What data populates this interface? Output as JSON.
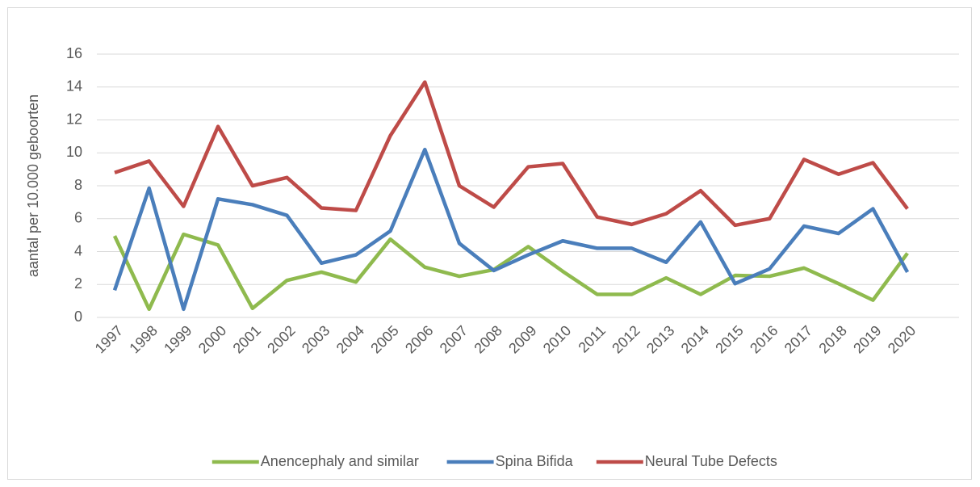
{
  "chart_data": {
    "type": "line",
    "y_label": "aantal per 10.000 geboorten",
    "categories": [
      "1997",
      "1998",
      "1999",
      "2000",
      "2001",
      "2002",
      "2003",
      "2004",
      "2005",
      "2006",
      "2007",
      "2008",
      "2009",
      "2010",
      "2011",
      "2012",
      "2013",
      "2014",
      "2015",
      "2016",
      "2017",
      "2018",
      "2019",
      "2020"
    ],
    "series": [
      {
        "name": "Anencephaly and similar",
        "color": "#8fba4e",
        "values": [
          4.95,
          0.5,
          5.05,
          4.4,
          0.55,
          2.25,
          2.75,
          2.15,
          4.75,
          3.05,
          2.5,
          2.9,
          4.3,
          2.8,
          1.4,
          1.4,
          2.4,
          1.4,
          2.55,
          2.5,
          3.0,
          2.05,
          1.05,
          3.9
        ]
      },
      {
        "name": "Spina Bifida",
        "color": "#4a7ebb",
        "values": [
          1.65,
          7.85,
          0.5,
          7.2,
          6.85,
          6.2,
          3.3,
          3.8,
          5.25,
          10.2,
          4.5,
          2.85,
          3.8,
          4.65,
          4.2,
          4.2,
          3.35,
          5.8,
          2.05,
          2.95,
          5.55,
          5.1,
          6.6,
          2.75
        ]
      },
      {
        "name": "Neural Tube Defects",
        "color": "#be4b48",
        "values": [
          8.8,
          9.5,
          6.75,
          11.6,
          8.0,
          8.5,
          6.65,
          6.5,
          11.05,
          14.3,
          8.0,
          6.7,
          9.15,
          9.35,
          6.1,
          5.65,
          6.3,
          7.7,
          5.6,
          6.0,
          9.6,
          8.7,
          9.4,
          6.6
        ]
      }
    ],
    "ylim": [
      0,
      16
    ],
    "yticks": [
      0,
      2,
      4,
      6,
      8,
      10,
      12,
      14,
      16
    ],
    "grid": true,
    "legend": "bottom"
  }
}
